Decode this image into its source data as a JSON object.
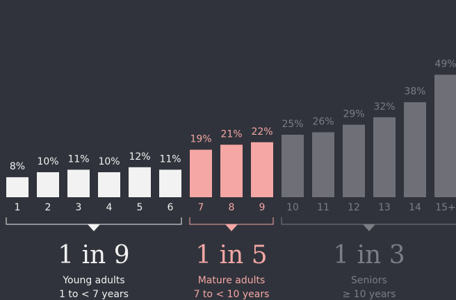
{
  "chart_data": {
    "type": "bar",
    "series": [
      {
        "name": "Young adults",
        "ratio": "1 in 9",
        "range": "1 to < 7 years",
        "color": "#f2f2f2",
        "categories": [
          "1",
          "2",
          "3",
          "4",
          "5",
          "6"
        ],
        "values": [
          8,
          10,
          11,
          10,
          12,
          11
        ],
        "value_labels": [
          "8%",
          "10%",
          "11%",
          "10%",
          "12%",
          "11%"
        ]
      },
      {
        "name": "Mature adults",
        "ratio": "1 in 5",
        "range": "7 to < 10 years",
        "color": "#f4a7a5",
        "categories": [
          "7",
          "8",
          "9"
        ],
        "values": [
          19,
          21,
          22
        ],
        "value_labels": [
          "19%",
          "21%",
          "22%"
        ]
      },
      {
        "name": "Seniors",
        "ratio": "1 in 3",
        "range": "≥ 10 years",
        "color": "#6e6f77",
        "categories": [
          "10",
          "11",
          "12",
          "13",
          "14",
          "15+"
        ],
        "values": [
          25,
          26,
          29,
          32,
          38,
          49
        ],
        "value_labels": [
          "25%",
          "26%",
          "29%",
          "32%",
          "38%",
          "49%"
        ]
      }
    ]
  }
}
